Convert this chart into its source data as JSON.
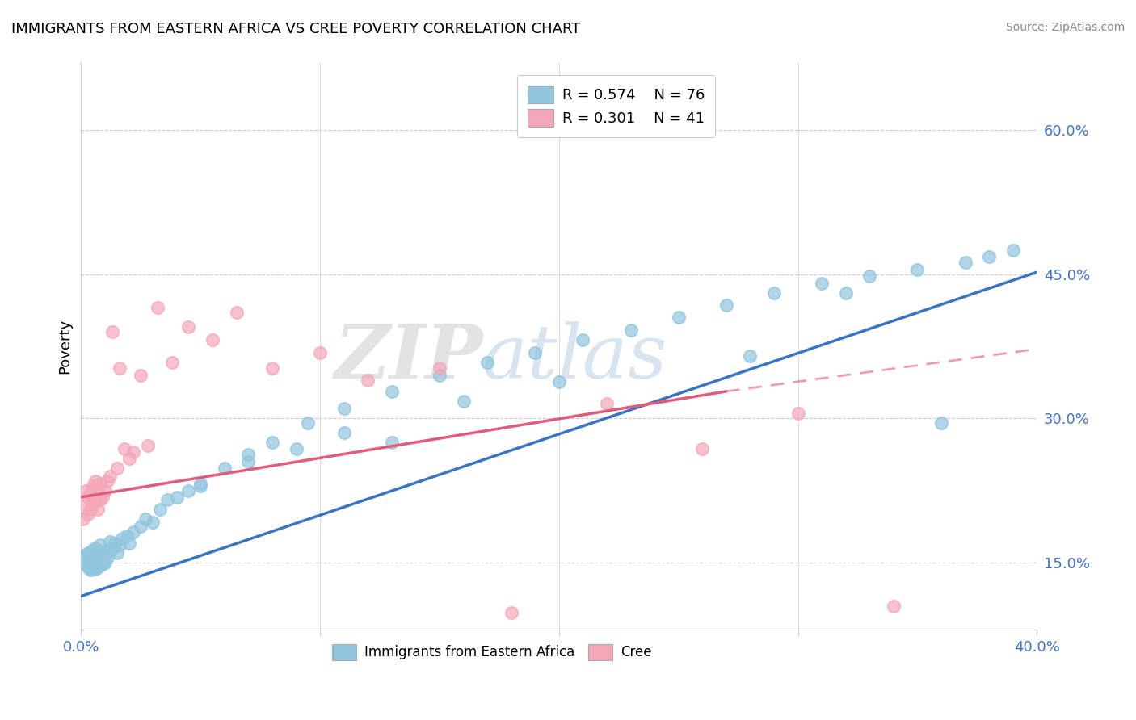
{
  "title": "IMMIGRANTS FROM EASTERN AFRICA VS CREE POVERTY CORRELATION CHART",
  "source": "Source: ZipAtlas.com",
  "ylabel": "Poverty",
  "watermark_zip": "ZIP",
  "watermark_atlas": "atlas",
  "xlim": [
    0.0,
    0.4
  ],
  "ylim": [
    0.08,
    0.67
  ],
  "yticks": [
    0.15,
    0.3,
    0.45,
    0.6
  ],
  "ytick_labels": [
    "15.0%",
    "30.0%",
    "45.0%",
    "60.0%"
  ],
  "xticks": [
    0.0,
    0.1,
    0.2,
    0.3,
    0.4
  ],
  "xtick_labels": [
    "0.0%",
    "",
    "",
    "",
    "40.0%"
  ],
  "legend_blue_text": "R = 0.574    N = 76",
  "legend_pink_text": "R = 0.301    N = 41",
  "blue_color": "#92c5de",
  "pink_color": "#f4a7b9",
  "blue_line_color": "#3a75c4",
  "pink_line_color": "#e05c7a",
  "dashed_line_color": "#e05c7a",
  "blue_scatter_x": [
    0.001,
    0.002,
    0.002,
    0.003,
    0.003,
    0.003,
    0.004,
    0.004,
    0.004,
    0.005,
    0.005,
    0.005,
    0.005,
    0.006,
    0.006,
    0.006,
    0.006,
    0.007,
    0.007,
    0.007,
    0.008,
    0.008,
    0.008,
    0.009,
    0.009,
    0.01,
    0.01,
    0.011,
    0.012,
    0.012,
    0.013,
    0.014,
    0.015,
    0.016,
    0.017,
    0.019,
    0.02,
    0.022,
    0.025,
    0.027,
    0.03,
    0.033,
    0.036,
    0.04,
    0.045,
    0.05,
    0.06,
    0.07,
    0.08,
    0.095,
    0.11,
    0.13,
    0.15,
    0.17,
    0.19,
    0.21,
    0.23,
    0.25,
    0.27,
    0.29,
    0.31,
    0.33,
    0.35,
    0.37,
    0.38,
    0.39,
    0.28,
    0.32,
    0.36,
    0.11,
    0.13,
    0.05,
    0.09,
    0.07,
    0.16,
    0.2
  ],
  "blue_scatter_y": [
    0.155,
    0.148,
    0.158,
    0.145,
    0.152,
    0.16,
    0.142,
    0.15,
    0.158,
    0.143,
    0.148,
    0.155,
    0.163,
    0.143,
    0.15,
    0.158,
    0.165,
    0.145,
    0.152,
    0.162,
    0.148,
    0.155,
    0.168,
    0.148,
    0.158,
    0.15,
    0.162,
    0.155,
    0.162,
    0.172,
    0.165,
    0.17,
    0.16,
    0.168,
    0.175,
    0.178,
    0.17,
    0.182,
    0.188,
    0.195,
    0.192,
    0.205,
    0.215,
    0.218,
    0.225,
    0.23,
    0.248,
    0.262,
    0.275,
    0.295,
    0.31,
    0.328,
    0.345,
    0.358,
    0.368,
    0.382,
    0.392,
    0.405,
    0.418,
    0.43,
    0.44,
    0.448,
    0.455,
    0.462,
    0.468,
    0.475,
    0.365,
    0.43,
    0.295,
    0.285,
    0.275,
    0.232,
    0.268,
    0.255,
    0.318,
    0.338
  ],
  "pink_scatter_x": [
    0.001,
    0.002,
    0.002,
    0.003,
    0.003,
    0.004,
    0.004,
    0.005,
    0.005,
    0.006,
    0.006,
    0.007,
    0.007,
    0.008,
    0.008,
    0.009,
    0.01,
    0.011,
    0.012,
    0.013,
    0.015,
    0.016,
    0.018,
    0.02,
    0.022,
    0.025,
    0.028,
    0.032,
    0.038,
    0.045,
    0.055,
    0.065,
    0.08,
    0.1,
    0.12,
    0.15,
    0.18,
    0.22,
    0.26,
    0.3,
    0.34
  ],
  "pink_scatter_y": [
    0.195,
    0.21,
    0.225,
    0.2,
    0.218,
    0.205,
    0.222,
    0.21,
    0.23,
    0.215,
    0.235,
    0.205,
    0.225,
    0.215,
    0.232,
    0.218,
    0.225,
    0.235,
    0.24,
    0.39,
    0.248,
    0.352,
    0.268,
    0.258,
    0.265,
    0.345,
    0.272,
    0.415,
    0.358,
    0.395,
    0.382,
    0.41,
    0.352,
    0.368,
    0.34,
    0.352,
    0.098,
    0.315,
    0.268,
    0.305,
    0.105
  ],
  "blue_trend_x": [
    0.0,
    0.4
  ],
  "blue_trend_y": [
    0.115,
    0.452
  ],
  "pink_trend_x": [
    0.0,
    0.27
  ],
  "pink_trend_y": [
    0.218,
    0.328
  ],
  "dashed_trend_x": [
    0.27,
    0.4
  ],
  "dashed_trend_y": [
    0.328,
    0.372
  ]
}
